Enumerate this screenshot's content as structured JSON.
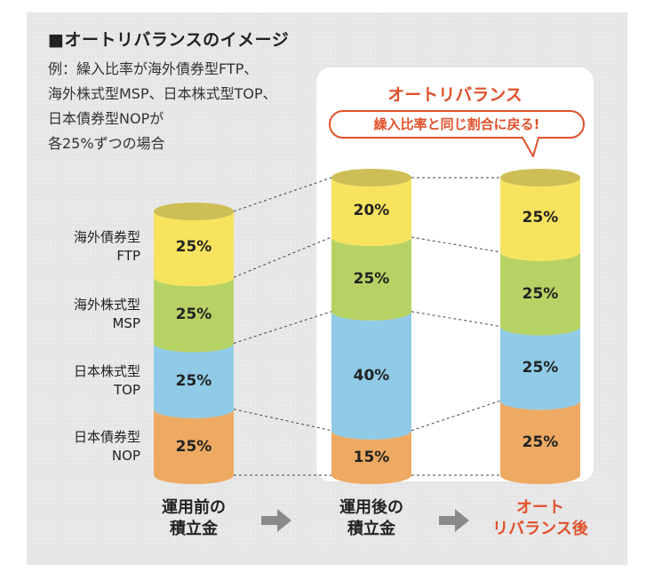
{
  "title": "■オートリバランスのイメージ",
  "example_lines": [
    "例：繰入比率が海外債券型FTP、",
    "海外株式型MSP、日本株式型TOP、",
    "日本債券型NOPが",
    "各25%ずつの場合"
  ],
  "rebalance_title": "オートリバランス",
  "rebalance_note": "繰入比率と同じ割合に戻る!",
  "categories": [
    {
      "name": "海外債券型",
      "code": "FTP",
      "color": "#f7e35e"
    },
    {
      "name": "海外株式型",
      "code": "MSP",
      "color": "#b7d264"
    },
    {
      "name": "日本株式型",
      "code": "TOP",
      "color": "#8fcbe6"
    },
    {
      "name": "日本債券型",
      "code": "NOP",
      "color": "#eeaa62"
    }
  ],
  "columns": [
    {
      "label_line1": "運用前の",
      "label_line2": "積立金",
      "label_color": "#222222",
      "values": [
        "25%",
        "25%",
        "25%",
        "25%"
      ]
    },
    {
      "label_line1": "運用後の",
      "label_line2": "積立金",
      "label_color": "#222222",
      "values": [
        "20%",
        "25%",
        "40%",
        "15%"
      ]
    },
    {
      "label_line1": "オート",
      "label_line2": "リバランス後",
      "label_color": "#e0512b",
      "values": [
        "25%",
        "25%",
        "25%",
        "25%"
      ]
    }
  ],
  "arrow_color": "#8a8a8a",
  "cylinder_top_color": "#cdbf55"
}
